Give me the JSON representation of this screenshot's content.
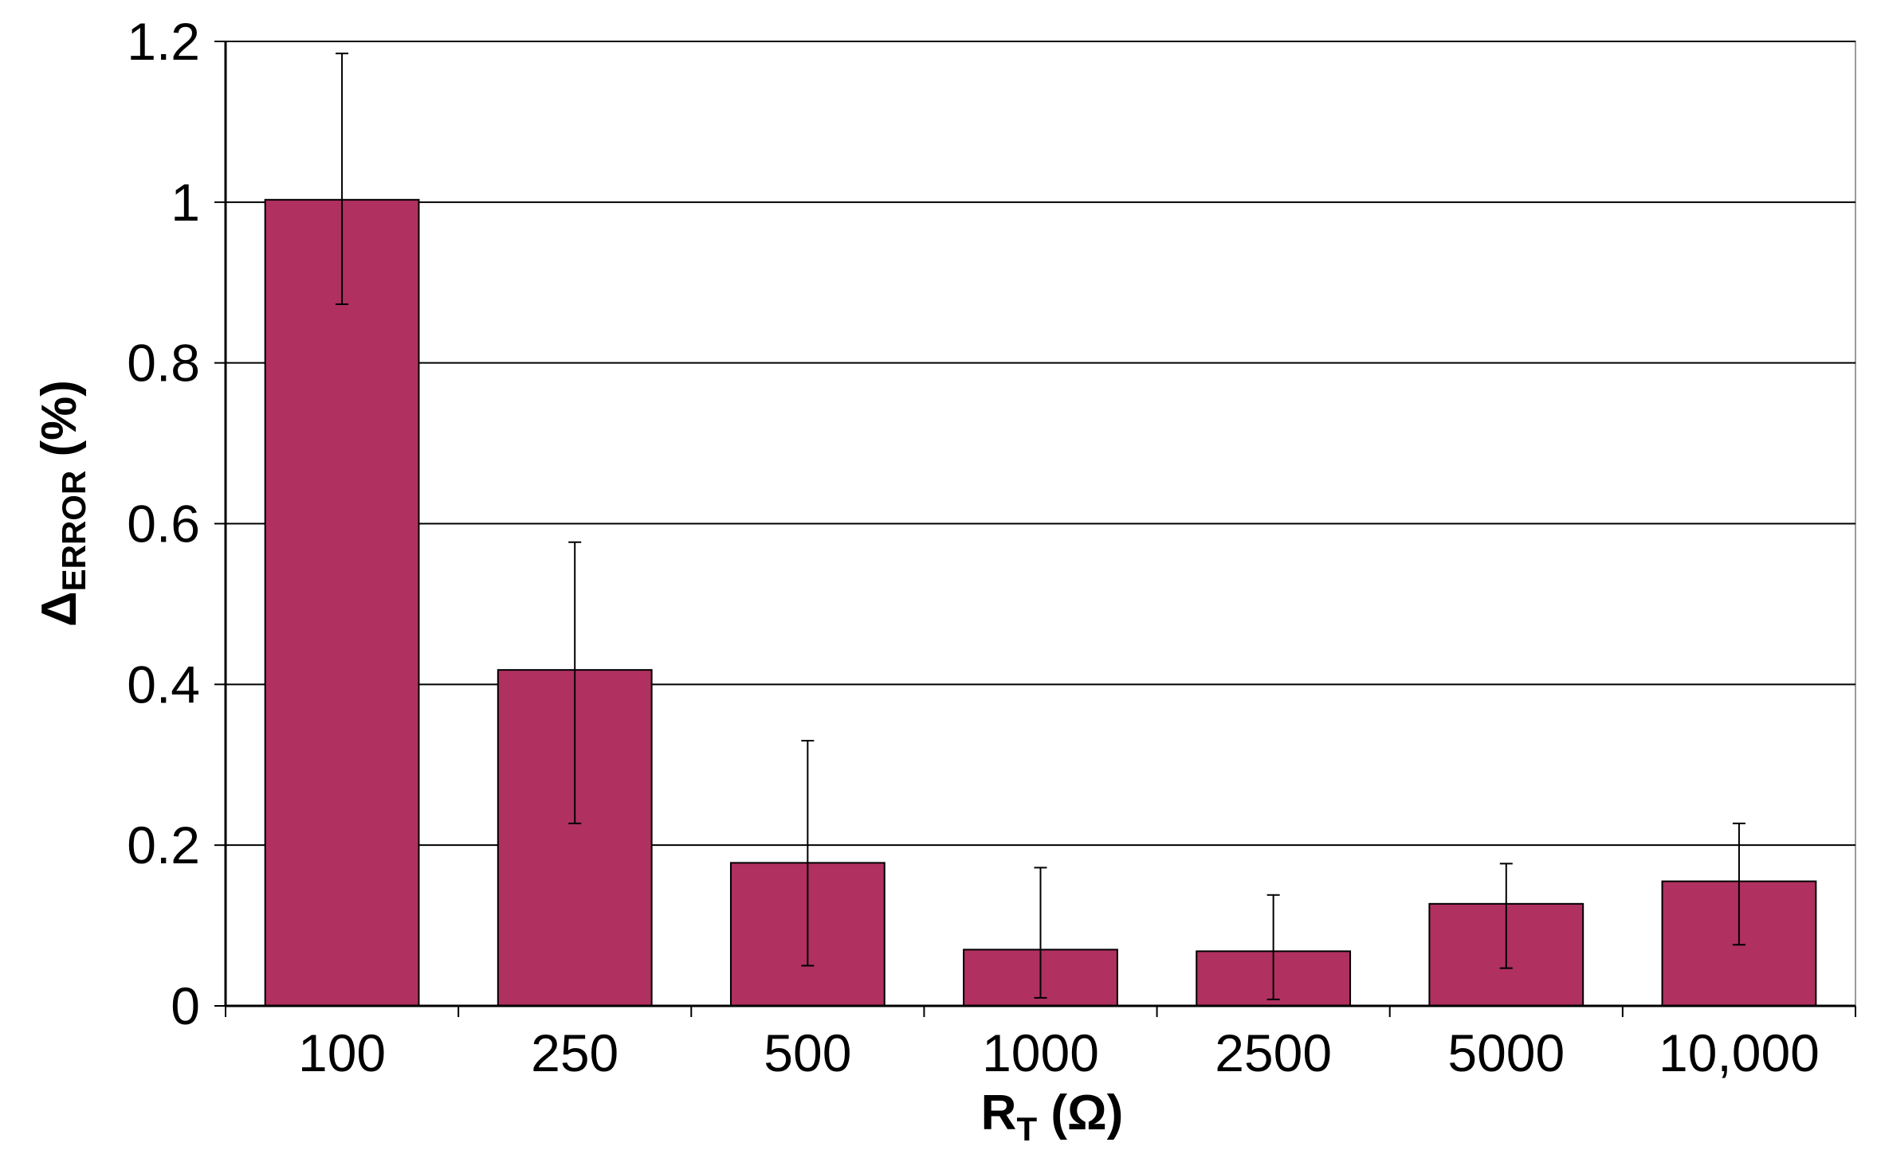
{
  "chart_data": {
    "type": "bar",
    "categories": [
      "100",
      "250",
      "500",
      "1000",
      "2500",
      "5000",
      "10,000"
    ],
    "values": [
      1.003,
      0.418,
      0.178,
      0.07,
      0.068,
      0.127,
      0.155
    ],
    "error_low": [
      0.873,
      0.227,
      0.05,
      0.01,
      0.008,
      0.047,
      0.076
    ],
    "error_high": [
      1.185,
      0.577,
      0.33,
      0.172,
      0.138,
      0.177,
      0.227
    ],
    "xlabel": {
      "main": "R",
      "sub": "T",
      "suffix": " (Ω)"
    },
    "ylabel": {
      "main": "Δ",
      "sub": "ERROR",
      "suffix": " (%)"
    },
    "ylim": [
      0,
      1.2
    ],
    "yticks": [
      0,
      0.2,
      0.4,
      0.6,
      0.8,
      1,
      1.2
    ],
    "ytick_labels": [
      "0",
      "0.2",
      "0.4",
      "0.6",
      "0.8",
      "1",
      "1.2"
    ],
    "grid": true,
    "bar_color": "#b03060"
  }
}
